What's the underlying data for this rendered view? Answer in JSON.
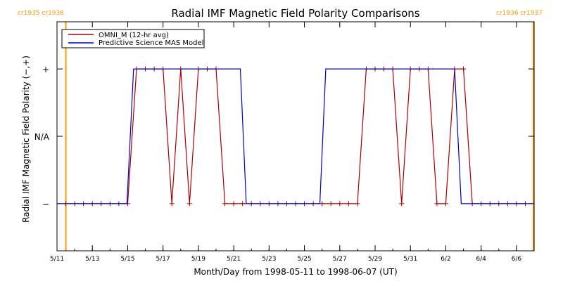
{
  "chart_data": {
    "type": "line",
    "title": "Radial IMF Magnetic Field Polarity Comparisons",
    "xlabel": "Month/Day from 1998-05-11 to 1998-06-07 (UT)",
    "ylabel": "Radial IMF Magnetic Field Polarity (−,+)",
    "x_unit": "days",
    "xlim": [
      "1998-05-11T00:00",
      "1998-06-07T00:00"
    ],
    "ylim": [
      -1.7,
      1.7
    ],
    "x_ticks": [
      {
        "at": "1998-05-11T00:00",
        "label": "5/11"
      },
      {
        "at": "1998-05-13T00:00",
        "label": "5/13"
      },
      {
        "at": "1998-05-15T00:00",
        "label": "5/15"
      },
      {
        "at": "1998-05-17T00:00",
        "label": "5/17"
      },
      {
        "at": "1998-05-19T00:00",
        "label": "5/19"
      },
      {
        "at": "1998-05-21T00:00",
        "label": "5/21"
      },
      {
        "at": "1998-05-23T00:00",
        "label": "5/23"
      },
      {
        "at": "1998-05-25T00:00",
        "label": "5/25"
      },
      {
        "at": "1998-05-27T00:00",
        "label": "5/27"
      },
      {
        "at": "1998-05-29T00:00",
        "label": "5/29"
      },
      {
        "at": "1998-05-31T00:00",
        "label": "5/31"
      },
      {
        "at": "1998-06-02T00:00",
        "label": "6/2"
      },
      {
        "at": "1998-06-04T00:00",
        "label": "6/4"
      },
      {
        "at": "1998-06-06T00:00",
        "label": "6/6"
      }
    ],
    "y_ticks": [
      {
        "value": 1,
        "label": "+"
      },
      {
        "value": 0,
        "label": "N/A"
      },
      {
        "value": -1,
        "label": "−"
      }
    ],
    "legend": {
      "position": "top-left",
      "entries": [
        "OMNI_M (12-hr avg)",
        "Predictive Science MAS Model"
      ]
    },
    "colors": {
      "omni": "#aa0000",
      "mas": "#0000cc",
      "carrington": "#ff9900",
      "axes": "#000000"
    },
    "carrington_markers": [
      {
        "labels": [
          "cr1935",
          "cr1936"
        ],
        "at": "1998-05-11T12:00",
        "side": "left"
      },
      {
        "labels": [
          "cr1936",
          "cr1937"
        ],
        "at": "1998-06-06T23:00",
        "side": "right"
      }
    ],
    "series": [
      {
        "name": "OMNI_M (12-hr avg)",
        "color": "#aa0000",
        "markers": true,
        "points": [
          [
            "1998-05-11T12:00",
            -1
          ],
          [
            "1998-05-12T00:00",
            -1
          ],
          [
            "1998-05-12T12:00",
            -1
          ],
          [
            "1998-05-13T00:00",
            -1
          ],
          [
            "1998-05-13T12:00",
            -1
          ],
          [
            "1998-05-14T00:00",
            -1
          ],
          [
            "1998-05-14T12:00",
            -1
          ],
          [
            "1998-05-15T00:00",
            -1
          ],
          [
            "1998-05-15T12:00",
            1
          ],
          [
            "1998-05-16T00:00",
            1
          ],
          [
            "1998-05-16T12:00",
            1
          ],
          [
            "1998-05-17T00:00",
            1
          ],
          [
            "1998-05-17T12:00",
            -1
          ],
          [
            "1998-05-18T00:00",
            1
          ],
          [
            "1998-05-18T12:00",
            -1
          ],
          [
            "1998-05-19T00:00",
            1
          ],
          [
            "1998-05-19T12:00",
            1
          ],
          [
            "1998-05-20T00:00",
            1
          ],
          [
            "1998-05-20T12:00",
            -1
          ],
          [
            "1998-05-21T00:00",
            -1
          ],
          [
            "1998-05-21T12:00",
            -1
          ],
          [
            "1998-05-22T00:00",
            -1
          ],
          [
            "1998-05-22T12:00",
            -1
          ],
          [
            "1998-05-23T00:00",
            -1
          ],
          [
            "1998-05-23T12:00",
            -1
          ],
          [
            "1998-05-24T00:00",
            -1
          ],
          [
            "1998-05-24T12:00",
            -1
          ],
          [
            "1998-05-25T00:00",
            -1
          ],
          [
            "1998-05-25T12:00",
            -1
          ],
          [
            "1998-05-26T00:00",
            -1
          ],
          [
            "1998-05-26T12:00",
            -1
          ],
          [
            "1998-05-27T00:00",
            -1
          ],
          [
            "1998-05-27T12:00",
            -1
          ],
          [
            "1998-05-28T00:00",
            -1
          ],
          [
            "1998-05-28T12:00",
            1
          ],
          [
            "1998-05-29T00:00",
            1
          ],
          [
            "1998-05-29T12:00",
            1
          ],
          [
            "1998-05-30T00:00",
            1
          ],
          [
            "1998-05-30T12:00",
            -1
          ],
          [
            "1998-05-31T00:00",
            1
          ],
          [
            "1998-05-31T12:00",
            1
          ],
          [
            "1998-06-01T00:00",
            1
          ],
          [
            "1998-06-01T12:00",
            -1
          ],
          [
            "1998-06-02T00:00",
            -1
          ],
          [
            "1998-06-02T12:00",
            1
          ],
          [
            "1998-06-03T00:00",
            1
          ],
          [
            "1998-06-03T12:00",
            -1
          ],
          [
            "1998-06-04T00:00",
            -1
          ],
          [
            "1998-06-04T12:00",
            -1
          ],
          [
            "1998-06-05T00:00",
            -1
          ],
          [
            "1998-06-05T12:00",
            -1
          ],
          [
            "1998-06-06T00:00",
            -1
          ],
          [
            "1998-06-06T12:00",
            -1
          ]
        ]
      },
      {
        "name": "Predictive Science MAS Model",
        "color": "#0000cc",
        "markers": false,
        "points": [
          [
            "1998-05-11T00:00",
            -1
          ],
          [
            "1998-05-14T23:00",
            -1
          ],
          [
            "1998-05-15T08:00",
            1
          ],
          [
            "1998-05-21T09:00",
            1
          ],
          [
            "1998-05-21T17:00",
            -1
          ],
          [
            "1998-05-25T21:00",
            -1
          ],
          [
            "1998-05-26T05:00",
            1
          ],
          [
            "1998-06-02T12:00",
            1
          ],
          [
            "1998-06-02T21:00",
            -1
          ],
          [
            "1998-06-07T00:00",
            -1
          ]
        ]
      }
    ]
  }
}
